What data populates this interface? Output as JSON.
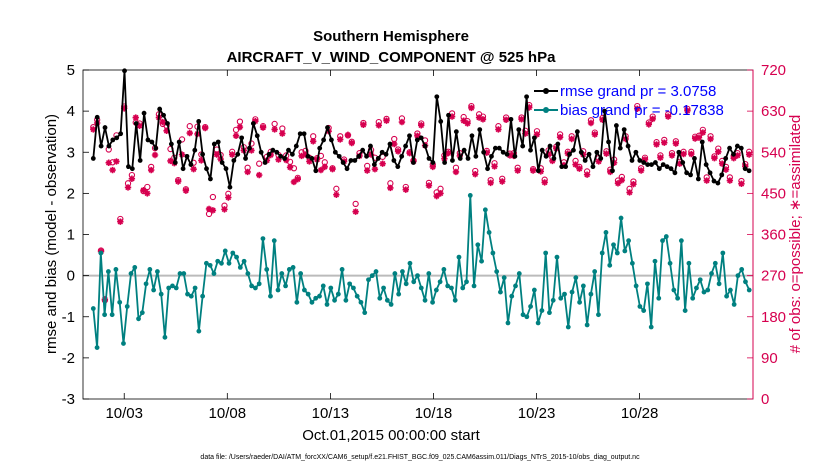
{
  "chart_data": {
    "type": "line",
    "title": "Southern Hemisphere",
    "subtitle": "AIRCRAFT_V_WIND_COMPONENT @ 525 hPa",
    "xlabel": "Oct.01,2015 00:00:00 start",
    "ylabel_left": "rmse and bias (model - observation)",
    "ylabel_right": "# of obs: o=possible; ∗=assimilated",
    "footnote": "data file: /Users/raeder/DAI/ATM_forcXX/CAM6_setup/f.e21.FHIST_BGC.f09_025.CAM6assim.011/Diags_NTrS_2015-10/obs_diag_output.nc",
    "xlim": [
      0,
      32.5
    ],
    "ylim_left": [
      -3,
      5
    ],
    "ylim_right": [
      0,
      720
    ],
    "x_ticks": [
      2,
      7,
      12,
      17,
      22,
      27
    ],
    "x_tick_labels": [
      "10/03",
      "10/08",
      "10/13",
      "10/18",
      "10/23",
      "10/28"
    ],
    "y_ticks_left": [
      -3,
      -2,
      -1,
      0,
      1,
      2,
      3,
      4,
      5
    ],
    "y_ticks_right": [
      0,
      90,
      180,
      270,
      360,
      450,
      540,
      630,
      720
    ],
    "colors": {
      "rmse": "#000000",
      "bias": "#008080",
      "obs": "#d6004f",
      "zero_line": "#bbbbbb",
      "legend_text": "#0000ff"
    },
    "legend": {
      "placement": "top-right",
      "entries": [
        "rmse grand pr = 3.0758",
        "bias grand pr = -0.17838"
      ]
    },
    "series": [
      {
        "name": "rmse",
        "values": [
          2.85,
          3.85,
          3.15,
          3.6,
          3.15,
          3.3,
          3.35,
          3.45,
          4.98,
          2.65,
          2.6,
          3.7,
          2.8,
          3.95,
          3.3,
          3.25,
          3.1,
          4.05,
          3.9,
          3.7,
          3.2,
          2.75,
          3.25,
          2.6,
          2.9,
          2.7,
          3.05,
          3.75,
          2.95,
          2.6,
          2.35,
          3.2,
          3.25,
          2.75,
          2.6,
          2.15,
          2.8,
          2.95,
          3.35,
          2.85,
          3.1,
          3.7,
          3.4,
          3.0,
          2.75,
          2.95,
          3.05,
          3.0,
          2.9,
          2.85,
          3.05,
          2.95,
          3.15,
          3.45,
          3.45,
          2.9,
          2.85,
          2.55,
          3.1,
          3.3,
          3.6,
          3.3,
          3.0,
          2.9,
          2.75,
          2.6,
          2.8,
          2.8,
          2.9,
          3.05,
          2.9,
          3.15,
          2.7,
          2.85,
          3.0,
          2.95,
          3.2,
          2.8,
          2.65,
          2.9,
          3.15,
          3.4,
          2.75,
          3.3,
          3.35,
          3.15,
          2.85,
          2.75,
          4.35,
          3.75,
          2.75,
          3.9,
          2.8,
          3.5,
          2.85,
          3.05,
          2.85,
          3.4,
          2.9,
          3.55,
          3.0,
          2.6,
          2.9,
          3.1,
          3.1,
          3.0,
          2.95,
          3.8,
          2.9,
          3.55,
          3.15,
          4.35,
          3.05,
          3.35,
          2.55,
          3.05,
          2.9,
          3.15,
          2.85,
          3.2,
          2.65,
          2.65,
          2.95,
          3.05,
          3.5,
          3.0,
          2.8,
          2.95,
          2.65,
          3.0,
          2.85,
          4.0,
          3.25,
          2.55,
          3.65,
          3.1,
          3.55,
          3.15,
          2.8,
          3.0,
          2.8,
          2.75,
          2.7,
          2.7,
          2.75,
          2.6,
          2.7,
          2.65,
          2.6,
          2.5,
          3.0,
          2.75,
          2.5,
          2.45,
          2.85,
          2.35,
          3.25,
          2.7,
          2.5,
          2.3,
          2.25,
          2.45,
          2.85,
          3.1,
          2.95,
          3.15,
          3.1,
          2.6,
          2.55
        ]
      },
      {
        "name": "bias",
        "values": [
          -0.8,
          -1.75,
          0.55,
          -0.95,
          0.1,
          -0.95,
          0.15,
          -0.65,
          -1.65,
          -0.75,
          0.05,
          0.2,
          -1.05,
          -0.9,
          -0.2,
          0.15,
          -0.35,
          0.1,
          -0.45,
          -1.5,
          -0.3,
          -0.25,
          -0.3,
          0.05,
          0.05,
          -0.45,
          -0.5,
          -0.3,
          -1.35,
          -0.5,
          0.3,
          0.25,
          0.05,
          0.35,
          0.3,
          0.6,
          0.3,
          0.55,
          0.45,
          0.2,
          0.35,
          0.05,
          -0.25,
          -0.3,
          -0.2,
          0.9,
          0.15,
          -0.5,
          0.85,
          -0.35,
          0.05,
          -0.25,
          0.15,
          0.2,
          -0.65,
          0.05,
          -0.35,
          -0.45,
          -0.65,
          -0.55,
          -0.5,
          -0.25,
          -0.7,
          -0.3,
          -0.6,
          -0.45,
          0.15,
          -0.6,
          -0.2,
          -0.3,
          -0.5,
          -0.65,
          -0.9,
          -0.1,
          0.0,
          0.1,
          -0.55,
          -0.3,
          -0.6,
          -0.7,
          0.05,
          -0.45,
          0.1,
          -0.2,
          0.3,
          -0.15,
          0.0,
          -0.3,
          -0.6,
          0.05,
          -0.65,
          -0.35,
          -0.15,
          0.15,
          -0.25,
          -0.3,
          -0.6,
          0.45,
          -0.3,
          -0.15,
          1.95,
          -0.25,
          0.75,
          0.35,
          1.6,
          1.05,
          0.55,
          0.1,
          -0.4,
          -0.05,
          -1.15,
          -0.5,
          -0.25,
          0.05,
          -0.95,
          -1.0,
          -0.75,
          -0.35,
          -1.15,
          -0.85,
          0.55,
          -0.9,
          -0.6,
          0.45,
          -0.55,
          -0.45,
          -1.25,
          -0.4,
          -0.05,
          -0.65,
          -0.25,
          -1.2,
          -0.45,
          0.1,
          -0.95,
          0.55,
          1.05,
          0.25,
          0.75,
          0.55,
          1.4,
          0.6,
          0.85,
          0.3,
          -0.25,
          -0.75,
          -0.85,
          -0.2,
          -1.25,
          0.35,
          -0.55,
          0.85,
          0.95,
          0.3,
          -0.35,
          -0.55,
          0.85,
          -0.85,
          0.3,
          -0.55,
          -0.3,
          -0.1,
          -0.4,
          -0.35,
          0.05,
          0.3,
          -0.2,
          0.55,
          -0.5,
          -0.35,
          -0.7,
          0.0,
          0.15,
          -0.15,
          -0.35
        ]
      },
      {
        "name": "obs_possible",
        "values": [
          595,
          611,
          325,
          216,
          546,
          518,
          577,
          394,
          640,
          472,
          490,
          605,
          603,
          455,
          464,
          508,
          549,
          623,
          602,
          598,
          547,
          528,
          479,
          568,
          459,
          597,
          517,
          596,
          535,
          595,
          405,
          442,
          546,
          534,
          423,
          449,
          541,
          589,
          607,
          551,
          506,
          559,
          612,
          515,
          597,
          530,
          541,
          602,
          534,
          592,
          533,
          519,
          505,
          484,
          540,
          543,
          528,
          575,
          527,
          532,
          518,
          593,
          505,
          460,
          575,
          524,
          577,
          563,
          427,
          538,
          604,
          510,
          545,
          528,
          606,
          530,
          613,
          472,
          569,
          546,
          614,
          464,
          540,
          522,
          581,
          603,
          566,
          473,
          513,
          452,
          460,
          533,
          541,
          625,
          506,
          538,
          617,
          608,
          641,
          499,
          623,
          618,
          543,
          479,
          516,
          597,
          482,
          616,
          537,
          538,
          506,
          616,
          587,
          643,
          503,
          586,
          505,
          480,
          544,
          528,
          552,
          579,
          518,
          541,
          575,
          521,
          508,
          542,
          498,
          610,
          583,
          527,
          615,
          542,
          502,
          524,
          478,
          486,
          575,
          460,
          476,
          641,
          505,
          528,
          605,
          618,
          562,
          533,
          567,
          623,
          538,
          564,
          519,
          541,
          635,
          541,
          574,
          576,
          589,
          485,
          575,
          531,
          548,
          521,
          508,
          485,
          532,
          538,
          477,
          514,
          541
        ]
      },
      {
        "name": "obs_assimilated",
        "values": [
          590,
          604,
          323,
          218,
          517,
          501,
          520,
          388,
          636,
          463,
          482,
          616,
          598,
          457,
          450,
          501,
          534,
          616,
          606,
          587,
          521,
          516,
          476,
          535,
          456,
          582,
          503,
          580,
          522,
          593,
          416,
          413,
          535,
          525,
          415,
          441,
          535,
          576,
          595,
          544,
          497,
          544,
          608,
          490,
          594,
          522,
          534,
          590,
          524,
          581,
          523,
          507,
          475,
          481,
          532,
          535,
          520,
          564,
          524,
          501,
          508,
          586,
          503,
          447,
          568,
          520,
          578,
          560,
          410,
          532,
          600,
          500,
          535,
          503,
          599,
          515,
          609,
          462,
          558,
          542,
          606,
          458,
          538,
          520,
          576,
          599,
          555,
          467,
          508,
          444,
          450,
          526,
          538,
          618,
          497,
          532,
          609,
          603,
          637,
          492,
          616,
          612,
          539,
          473,
          509,
          590,
          476,
          611,
          533,
          532,
          500,
          612,
          581,
          638,
          500,
          579,
          498,
          474,
          536,
          521,
          548,
          573,
          512,
          537,
          569,
          513,
          504,
          535,
          491,
          604,
          579,
          520,
          611,
          537,
          497,
          517,
          472,
          479,
          569,
          452,
          470,
          635,
          500,
          524,
          601,
          613,
          557,
          528,
          561,
          618,
          533,
          559,
          515,
          536,
          631,
          536,
          570,
          572,
          583,
          478,
          569,
          527,
          541,
          515,
          502,
          478,
          527,
          533,
          471,
          509,
          535
        ]
      }
    ]
  }
}
